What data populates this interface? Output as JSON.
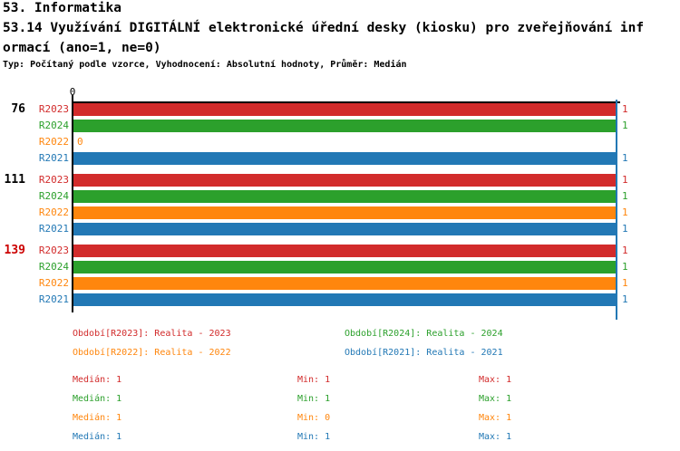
{
  "header": {
    "line1": "53. Informatika",
    "line2": "53.14 Využívání DIGITÁLNÍ elektronické úřední desky (kiosku) pro zveřejňování inf",
    "line3": "ormací (ano=1, ne=0)",
    "meta": "Typ: Počítaný podle vzorce, Vyhodnocení: Absolutní hodnoty, Průměr: Medián"
  },
  "chart_data": {
    "type": "bar",
    "orientation": "horizontal",
    "title": "53.14 Využívání DIGITÁLNÍ elektronické úřední desky (kiosku) pro zveřejňování informací (ano=1, ne=0)",
    "xlim": [
      0,
      1
    ],
    "axis_tick_label": "0",
    "gridline_value": 1,
    "gridline_color": "#2278b5",
    "series_colors": {
      "R2023": "#d22b2b",
      "R2024": "#2ca02c",
      "R2022": "#ff860d",
      "R2021": "#2278b5"
    },
    "groups": [
      {
        "label": "76",
        "label_color": "#000000",
        "bars": [
          {
            "series": "R2023",
            "value": 1
          },
          {
            "series": "R2024",
            "value": 1
          },
          {
            "series": "R2022",
            "value": 0
          },
          {
            "series": "R2021",
            "value": 1
          }
        ]
      },
      {
        "label": "111",
        "label_color": "#000000",
        "bars": [
          {
            "series": "R2023",
            "value": 1
          },
          {
            "series": "R2024",
            "value": 1
          },
          {
            "series": "R2022",
            "value": 1
          },
          {
            "series": "R2021",
            "value": 1
          }
        ]
      },
      {
        "label": "139",
        "label_color": "#cc0000",
        "bars": [
          {
            "series": "R2023",
            "value": 1
          },
          {
            "series": "R2024",
            "value": 1
          },
          {
            "series": "R2022",
            "value": 1
          },
          {
            "series": "R2021",
            "value": 1
          }
        ]
      }
    ],
    "legend": [
      {
        "series": "R2023",
        "label": "Období[R2023]: Realita - 2023"
      },
      {
        "series": "R2024",
        "label": "Období[R2024]: Realita - 2024"
      },
      {
        "series": "R2022",
        "label": "Období[R2022]: Realita - 2022"
      },
      {
        "series": "R2021",
        "label": "Období[R2021]: Realita - 2021"
      }
    ],
    "stats": [
      {
        "series": "R2023",
        "cells": [
          "Medián: 1",
          "Min: 1",
          "Max: 1"
        ]
      },
      {
        "series": "R2024",
        "cells": [
          "Medián: 1",
          "Min: 1",
          "Max: 1"
        ]
      },
      {
        "series": "R2022",
        "cells": [
          "Medián: 1",
          "Min: 0",
          "Max: 1"
        ]
      },
      {
        "series": "R2021",
        "cells": [
          "Medián: 1",
          "Min: 1",
          "Max: 1"
        ]
      }
    ]
  }
}
